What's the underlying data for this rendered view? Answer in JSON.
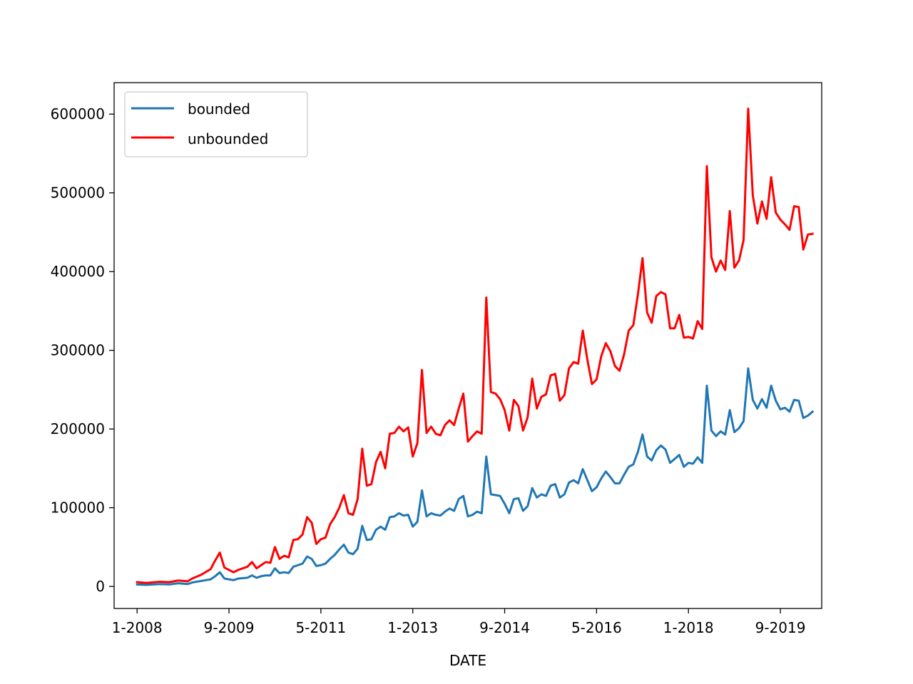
{
  "chart_data": {
    "type": "line",
    "title": "",
    "xlabel": "DATE",
    "ylabel": "",
    "x_tick_labels": [
      "1-2008",
      "9-2009",
      "5-2011",
      "1-2013",
      "9-2014",
      "5-2016",
      "1-2018",
      "9-2019"
    ],
    "y_ticks": [
      0,
      100000,
      200000,
      300000,
      400000,
      500000,
      600000
    ],
    "y_tick_labels": [
      "0",
      "100000",
      "200000",
      "300000",
      "400000",
      "500000",
      "600000"
    ],
    "ylim": [
      -28000,
      640000
    ],
    "xlim": [
      "2007-08",
      "2020-06"
    ],
    "grid": false,
    "legend_position": "upper-left",
    "series": [
      {
        "name": "bounded",
        "color": "#1f77b4",
        "points": [
          [
            "2008-01",
            2500
          ],
          [
            "2008-03",
            2000
          ],
          [
            "2008-06",
            3000
          ],
          [
            "2008-08",
            2500
          ],
          [
            "2008-10",
            4000
          ],
          [
            "2008-12",
            3000
          ],
          [
            "2009-01",
            5000
          ],
          [
            "2009-03",
            7000
          ],
          [
            "2009-05",
            9000
          ],
          [
            "2009-06",
            13000
          ],
          [
            "2009-07",
            18000
          ],
          [
            "2009-08",
            10000
          ],
          [
            "2009-10",
            8000
          ],
          [
            "2009-11",
            10000
          ],
          [
            "2010-01",
            11000
          ],
          [
            "2010-02",
            14000
          ],
          [
            "2010-03",
            11000
          ],
          [
            "2010-04",
            13000
          ],
          [
            "2010-05",
            14000
          ],
          [
            "2010-06",
            14000
          ],
          [
            "2010-07",
            23000
          ],
          [
            "2010-08",
            17000
          ],
          [
            "2010-09",
            18000
          ],
          [
            "2010-10",
            17000
          ],
          [
            "2010-11",
            25000
          ],
          [
            "2010-12",
            27000
          ],
          [
            "2011-01",
            29000
          ],
          [
            "2011-02",
            38000
          ],
          [
            "2011-03",
            35000
          ],
          [
            "2011-04",
            26000
          ],
          [
            "2011-05",
            27000
          ],
          [
            "2011-06",
            29000
          ],
          [
            "2011-07",
            35000
          ],
          [
            "2011-08",
            40000
          ],
          [
            "2011-09",
            47000
          ],
          [
            "2011-10",
            53000
          ],
          [
            "2011-11",
            43000
          ],
          [
            "2011-12",
            41000
          ],
          [
            "2012-01",
            48000
          ],
          [
            "2012-02",
            77000
          ],
          [
            "2012-03",
            59000
          ],
          [
            "2012-04",
            60000
          ],
          [
            "2012-05",
            72000
          ],
          [
            "2012-06",
            76000
          ],
          [
            "2012-07",
            72000
          ],
          [
            "2012-08",
            88000
          ],
          [
            "2012-09",
            89000
          ],
          [
            "2012-10",
            93000
          ],
          [
            "2012-11",
            90000
          ],
          [
            "2012-12",
            91000
          ],
          [
            "2013-01",
            76000
          ],
          [
            "2013-02",
            82000
          ],
          [
            "2013-03",
            122000
          ],
          [
            "2013-04",
            89000
          ],
          [
            "2013-05",
            93000
          ],
          [
            "2013-06",
            91000
          ],
          [
            "2013-07",
            90000
          ],
          [
            "2013-08",
            95000
          ],
          [
            "2013-09",
            99000
          ],
          [
            "2013-10",
            96000
          ],
          [
            "2013-11",
            111000
          ],
          [
            "2013-12",
            115000
          ],
          [
            "2014-01",
            89000
          ],
          [
            "2014-02",
            91000
          ],
          [
            "2014-03",
            95000
          ],
          [
            "2014-04",
            93000
          ],
          [
            "2014-05",
            165000
          ],
          [
            "2014-06",
            117000
          ],
          [
            "2014-07",
            116000
          ],
          [
            "2014-08",
            115000
          ],
          [
            "2014-09",
            105000
          ],
          [
            "2014-10",
            93000
          ],
          [
            "2014-11",
            111000
          ],
          [
            "2014-12",
            112000
          ],
          [
            "2015-01",
            96000
          ],
          [
            "2015-02",
            102000
          ],
          [
            "2015-03",
            125000
          ],
          [
            "2015-04",
            113000
          ],
          [
            "2015-05",
            117000
          ],
          [
            "2015-06",
            115000
          ],
          [
            "2015-07",
            128000
          ],
          [
            "2015-08",
            130000
          ],
          [
            "2015-09",
            113000
          ],
          [
            "2015-10",
            117000
          ],
          [
            "2015-11",
            132000
          ],
          [
            "2015-12",
            135000
          ],
          [
            "2016-01",
            131000
          ],
          [
            "2016-02",
            149000
          ],
          [
            "2016-03",
            135000
          ],
          [
            "2016-04",
            121000
          ],
          [
            "2016-05",
            126000
          ],
          [
            "2016-06",
            137000
          ],
          [
            "2016-07",
            146000
          ],
          [
            "2016-08",
            139000
          ],
          [
            "2016-09",
            131000
          ],
          [
            "2016-10",
            131000
          ],
          [
            "2016-11",
            142000
          ],
          [
            "2016-12",
            152000
          ],
          [
            "2017-01",
            155000
          ],
          [
            "2017-02",
            171000
          ],
          [
            "2017-03",
            193000
          ],
          [
            "2017-04",
            165000
          ],
          [
            "2017-05",
            160000
          ],
          [
            "2017-06",
            173000
          ],
          [
            "2017-07",
            179000
          ],
          [
            "2017-08",
            174000
          ],
          [
            "2017-09",
            157000
          ],
          [
            "2017-10",
            162000
          ],
          [
            "2017-11",
            167000
          ],
          [
            "2017-12",
            152000
          ],
          [
            "2018-01",
            157000
          ],
          [
            "2018-02",
            156000
          ],
          [
            "2018-03",
            164000
          ],
          [
            "2018-04",
            157000
          ],
          [
            "2018-05",
            255000
          ],
          [
            "2018-06",
            198000
          ],
          [
            "2018-07",
            191000
          ],
          [
            "2018-08",
            197000
          ],
          [
            "2018-09",
            193000
          ],
          [
            "2018-10",
            224000
          ],
          [
            "2018-11",
            196000
          ],
          [
            "2018-12",
            201000
          ],
          [
            "2019-01",
            210000
          ],
          [
            "2019-02",
            277000
          ],
          [
            "2019-03",
            237000
          ],
          [
            "2019-04",
            226000
          ],
          [
            "2019-05",
            238000
          ],
          [
            "2019-06",
            227000
          ],
          [
            "2019-07",
            255000
          ],
          [
            "2019-08",
            236000
          ],
          [
            "2019-09",
            225000
          ],
          [
            "2019-10",
            227000
          ],
          [
            "2019-11",
            222000
          ],
          [
            "2019-12",
            237000
          ],
          [
            "2020-01",
            236000
          ],
          [
            "2020-02",
            214000
          ],
          [
            "2020-03",
            217000
          ],
          [
            "2020-04",
            222000
          ]
        ]
      },
      {
        "name": "unbounded",
        "color": "#ff0000",
        "points": [
          [
            "2008-01",
            5500
          ],
          [
            "2008-03",
            4500
          ],
          [
            "2008-06",
            6000
          ],
          [
            "2008-08",
            5500
          ],
          [
            "2008-10",
            7500
          ],
          [
            "2008-12",
            6500
          ],
          [
            "2009-01",
            10000
          ],
          [
            "2009-03",
            15000
          ],
          [
            "2009-05",
            22000
          ],
          [
            "2009-06",
            33000
          ],
          [
            "2009-07",
            43000
          ],
          [
            "2009-08",
            24000
          ],
          [
            "2009-10",
            18000
          ],
          [
            "2009-11",
            21000
          ],
          [
            "2010-01",
            25000
          ],
          [
            "2010-02",
            31000
          ],
          [
            "2010-03",
            23000
          ],
          [
            "2010-04",
            27000
          ],
          [
            "2010-05",
            31000
          ],
          [
            "2010-06",
            30000
          ],
          [
            "2010-07",
            50000
          ],
          [
            "2010-08",
            35000
          ],
          [
            "2010-09",
            39000
          ],
          [
            "2010-10",
            37000
          ],
          [
            "2010-11",
            59000
          ],
          [
            "2010-12",
            60000
          ],
          [
            "2011-01",
            66000
          ],
          [
            "2011-02",
            88000
          ],
          [
            "2011-03",
            81000
          ],
          [
            "2011-04",
            54000
          ],
          [
            "2011-05",
            60000
          ],
          [
            "2011-06",
            62000
          ],
          [
            "2011-07",
            79000
          ],
          [
            "2011-08",
            88000
          ],
          [
            "2011-09",
            100000
          ],
          [
            "2011-10",
            116000
          ],
          [
            "2011-11",
            93000
          ],
          [
            "2011-12",
            91000
          ],
          [
            "2012-01",
            111000
          ],
          [
            "2012-02",
            175000
          ],
          [
            "2012-03",
            128000
          ],
          [
            "2012-04",
            130000
          ],
          [
            "2012-05",
            158000
          ],
          [
            "2012-06",
            171000
          ],
          [
            "2012-07",
            150000
          ],
          [
            "2012-08",
            194000
          ],
          [
            "2012-09",
            195000
          ],
          [
            "2012-10",
            203000
          ],
          [
            "2012-11",
            197000
          ],
          [
            "2012-12",
            202000
          ],
          [
            "2013-01",
            165000
          ],
          [
            "2013-02",
            182000
          ],
          [
            "2013-03",
            275000
          ],
          [
            "2013-04",
            195000
          ],
          [
            "2013-05",
            203000
          ],
          [
            "2013-06",
            194000
          ],
          [
            "2013-07",
            192000
          ],
          [
            "2013-08",
            205000
          ],
          [
            "2013-09",
            211000
          ],
          [
            "2013-10",
            205000
          ],
          [
            "2013-11",
            226000
          ],
          [
            "2013-12",
            245000
          ],
          [
            "2014-01",
            184000
          ],
          [
            "2014-02",
            191000
          ],
          [
            "2014-03",
            197000
          ],
          [
            "2014-04",
            194000
          ],
          [
            "2014-05",
            367000
          ],
          [
            "2014-06",
            247000
          ],
          [
            "2014-07",
            245000
          ],
          [
            "2014-08",
            238000
          ],
          [
            "2014-09",
            224000
          ],
          [
            "2014-10",
            198000
          ],
          [
            "2014-11",
            237000
          ],
          [
            "2014-12",
            229000
          ],
          [
            "2015-01",
            198000
          ],
          [
            "2015-02",
            215000
          ],
          [
            "2015-03",
            264000
          ],
          [
            "2015-04",
            226000
          ],
          [
            "2015-05",
            241000
          ],
          [
            "2015-06",
            244000
          ],
          [
            "2015-07",
            268000
          ],
          [
            "2015-08",
            270000
          ],
          [
            "2015-09",
            236000
          ],
          [
            "2015-10",
            243000
          ],
          [
            "2015-11",
            277000
          ],
          [
            "2015-12",
            285000
          ],
          [
            "2016-01",
            283000
          ],
          [
            "2016-02",
            325000
          ],
          [
            "2016-03",
            288000
          ],
          [
            "2016-04",
            257000
          ],
          [
            "2016-05",
            263000
          ],
          [
            "2016-06",
            292000
          ],
          [
            "2016-07",
            309000
          ],
          [
            "2016-08",
            299000
          ],
          [
            "2016-09",
            280000
          ],
          [
            "2016-10",
            274000
          ],
          [
            "2016-11",
            295000
          ],
          [
            "2016-12",
            325000
          ],
          [
            "2017-01",
            332000
          ],
          [
            "2017-02",
            371000
          ],
          [
            "2017-03",
            417000
          ],
          [
            "2017-04",
            348000
          ],
          [
            "2017-05",
            335000
          ],
          [
            "2017-06",
            369000
          ],
          [
            "2017-07",
            374000
          ],
          [
            "2017-08",
            371000
          ],
          [
            "2017-09",
            328000
          ],
          [
            "2017-10",
            328000
          ],
          [
            "2017-11",
            345000
          ],
          [
            "2017-12",
            316000
          ],
          [
            "2018-01",
            317000
          ],
          [
            "2018-02",
            315000
          ],
          [
            "2018-03",
            337000
          ],
          [
            "2018-04",
            327000
          ],
          [
            "2018-05",
            534000
          ],
          [
            "2018-06",
            418000
          ],
          [
            "2018-07",
            400000
          ],
          [
            "2018-08",
            414000
          ],
          [
            "2018-09",
            402000
          ],
          [
            "2018-10",
            477000
          ],
          [
            "2018-11",
            405000
          ],
          [
            "2018-12",
            414000
          ],
          [
            "2019-01",
            440000
          ],
          [
            "2019-02",
            607000
          ],
          [
            "2019-03",
            497000
          ],
          [
            "2019-04",
            461000
          ],
          [
            "2019-05",
            489000
          ],
          [
            "2019-06",
            467000
          ],
          [
            "2019-07",
            520000
          ],
          [
            "2019-08",
            475000
          ],
          [
            "2019-09",
            466000
          ],
          [
            "2019-10",
            460000
          ],
          [
            "2019-11",
            453000
          ],
          [
            "2019-12",
            483000
          ],
          [
            "2020-01",
            482000
          ],
          [
            "2020-02",
            428000
          ],
          [
            "2020-03",
            447000
          ],
          [
            "2020-04",
            448000
          ]
        ]
      }
    ]
  }
}
